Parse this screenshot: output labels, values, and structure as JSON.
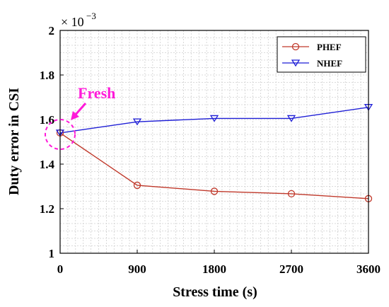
{
  "chart_data": {
    "type": "line",
    "xlabel": "Stress time (s)",
    "ylabel": "Duty error in CSI",
    "x": [
      0,
      900,
      1800,
      2700,
      3600
    ],
    "xticks": [
      "0",
      "900",
      "1800",
      "2700",
      "3600"
    ],
    "xlim": [
      0,
      3600
    ],
    "yticks": [
      "1",
      "1.2",
      "1.4",
      "1.6",
      "1.8",
      "2"
    ],
    "ylim": [
      1.0,
      2.0
    ],
    "yscale_label": "× 10",
    "yscale_exp": "−3",
    "grid": true,
    "legend_position": "top-right",
    "series": [
      {
        "name": "PHEF",
        "values": [
          1.54,
          1.305,
          1.278,
          1.267,
          1.245
        ],
        "color": "#c0392b",
        "marker": "circle"
      },
      {
        "name": "NHEF",
        "values": [
          1.54,
          1.59,
          1.605,
          1.605,
          1.655
        ],
        "color": "#1f1fd6",
        "marker": "triangle-down"
      }
    ],
    "annotation": {
      "text": "Fresh",
      "color": "#ff1ad9"
    }
  }
}
